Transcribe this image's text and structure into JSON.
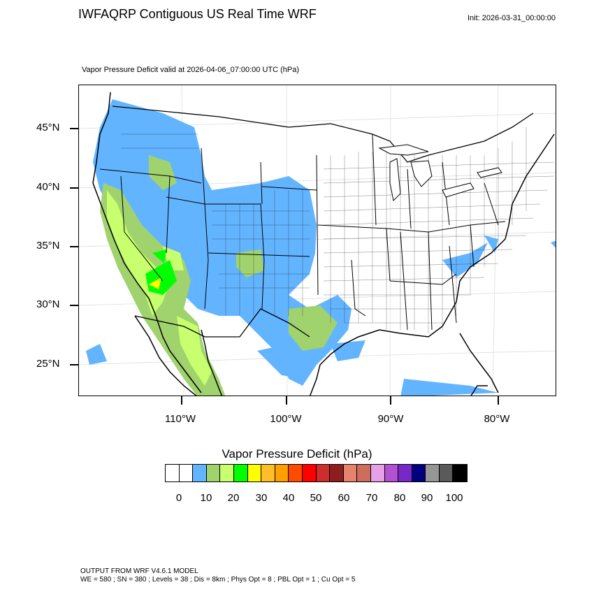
{
  "header": {
    "title": "IWFAQRP Contiguous US Real Time WRF",
    "init": "Init: 2026-03-31_00:00:00"
  },
  "map": {
    "subtitle": "Vapor Pressure Deficit valid at 2026-04-06_07:00:00 UTC   (hPa)",
    "lat_labels": [
      "45°N",
      "40°N",
      "35°N",
      "30°N",
      "25°N"
    ],
    "lon_labels": [
      "110°W",
      "100°W",
      "90°W",
      "80°W"
    ]
  },
  "legend": {
    "title": "Vapor Pressure Deficit  (hPa)",
    "tick_labels": [
      "0",
      "10",
      "20",
      "30",
      "40",
      "50",
      "60",
      "70",
      "80",
      "90",
      "100"
    ],
    "colors": [
      "#ffffff",
      "#ffffff",
      "#63b4ff",
      "#a0d26e",
      "#c8ff6e",
      "#00ff00",
      "#ffff00",
      "#ffbe28",
      "#ffa000",
      "#ff4b00",
      "#ff0000",
      "#cd2d2d",
      "#8c1e1e",
      "#e6826e",
      "#cd6e5a",
      "#e6a0e6",
      "#b450d2",
      "#7828c8",
      "#000080",
      "#969696",
      "#5a5a5a",
      "#000000"
    ]
  },
  "footer": {
    "line1": "OUTPUT FROM WRF V4.6.1 MODEL",
    "line2": "WE = 580 ; SN = 380 ; Levels = 38 ; Dis = 8km ; Phys Opt = 8 ; PBL Opt = 1 ; Cu Opt = 5"
  }
}
